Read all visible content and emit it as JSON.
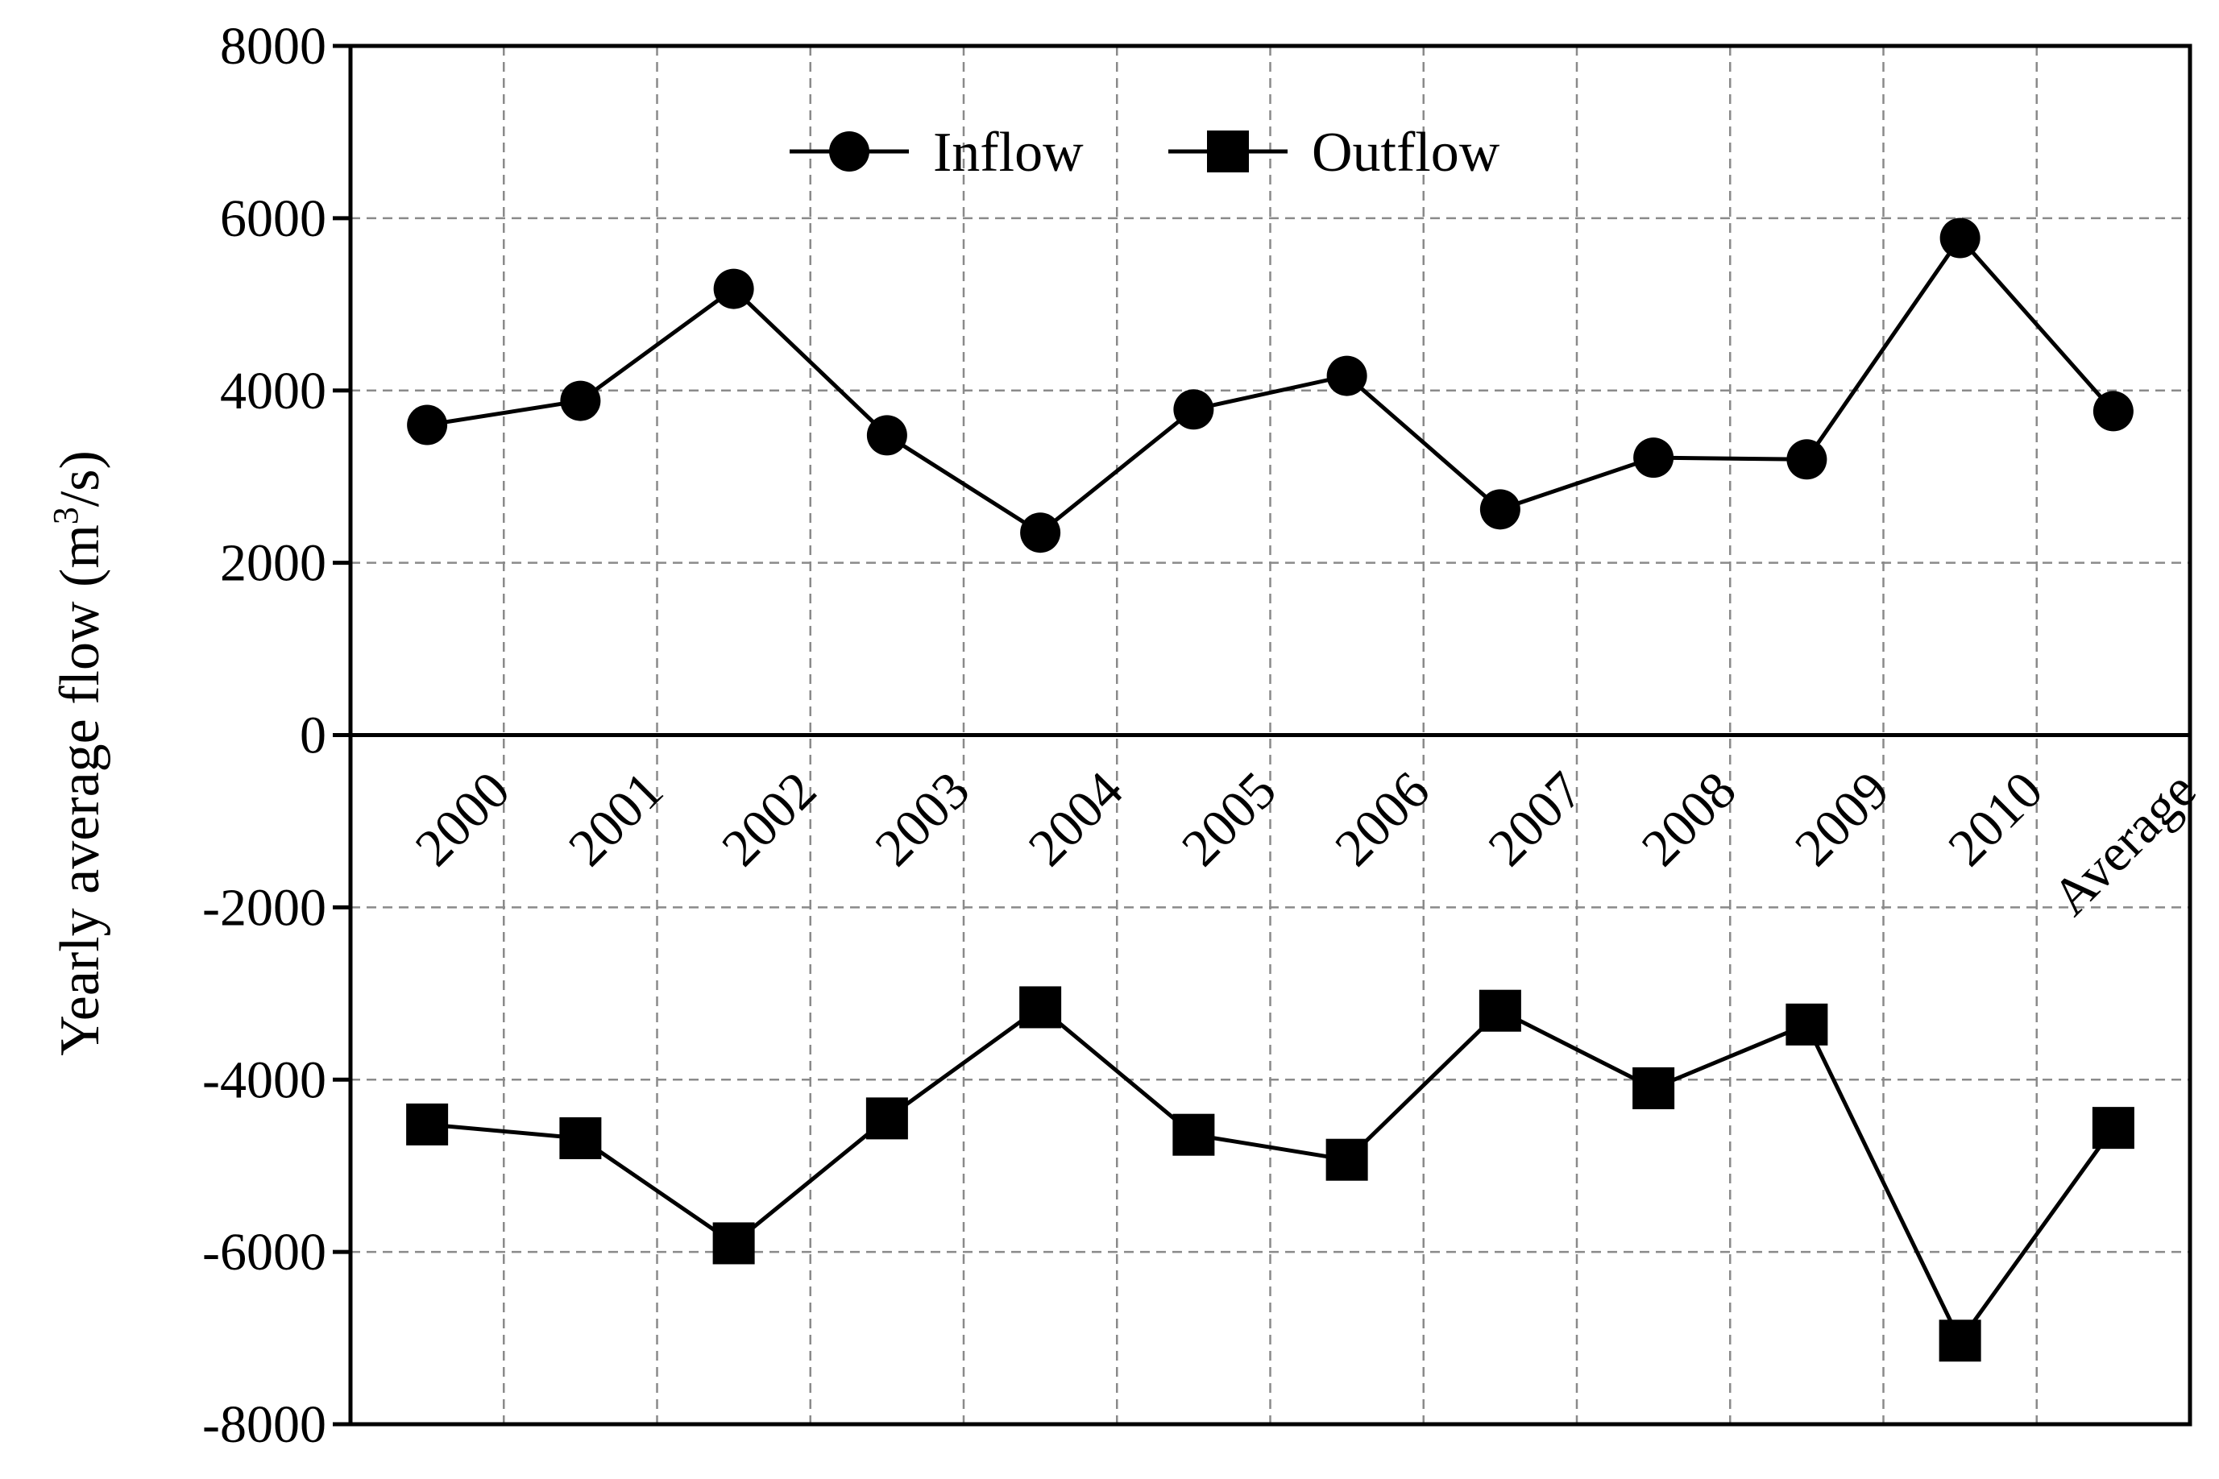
{
  "chart_data": {
    "type": "line",
    "title": "",
    "xlabel": "",
    "ylabel": "Yearly average flow (m³/s)",
    "ylabel_parts": {
      "prefix": "Yearly  average flow (m",
      "superscript": "3",
      "suffix": "/s)"
    },
    "categories": [
      "2000",
      "2001",
      "2002",
      "2003",
      "2004",
      "2005",
      "2006",
      "2007",
      "2008",
      "2009",
      "2010",
      "Average"
    ],
    "ylim": [
      -8000,
      8000
    ],
    "yticks": [
      "8000",
      "6000",
      "4000",
      "2000",
      "0",
      "-2000",
      "-4000",
      "-6000",
      "-8000"
    ],
    "ytick_values": [
      8000,
      6000,
      4000,
      2000,
      0,
      -2000,
      -4000,
      -6000,
      -8000
    ],
    "grid": true,
    "legend_position": "top-center",
    "series": [
      {
        "name": "Inflow",
        "marker": "circle",
        "color": "#000000",
        "values": [
          3600,
          3880,
          5180,
          3480,
          2350,
          3780,
          4170,
          2620,
          3220,
          3200,
          5770,
          3760
        ]
      },
      {
        "name": "Outflow",
        "marker": "square",
        "color": "#000000",
        "values": [
          -4520,
          -4680,
          -5900,
          -4450,
          -3160,
          -4640,
          -4930,
          -3200,
          -4100,
          -3360,
          -7030,
          -4560
        ]
      }
    ]
  }
}
